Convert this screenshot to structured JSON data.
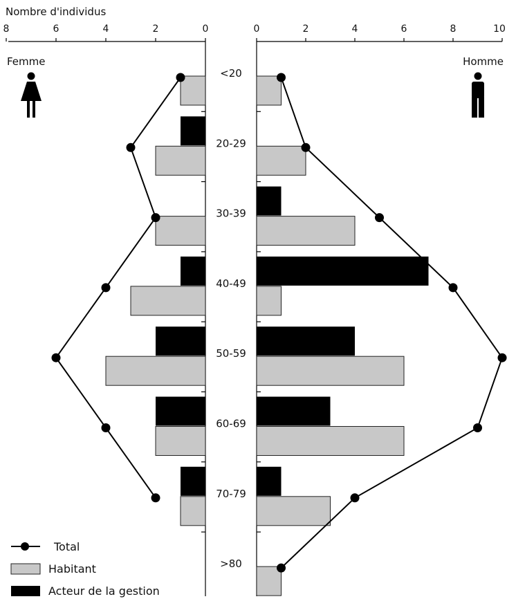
{
  "chart_data": {
    "type": "population-pyramid",
    "axis_title": "Nombre d'individus",
    "left_label": "Femme",
    "right_label": "Homme",
    "left_icon": "woman-icon",
    "right_icon": "man-icon",
    "categories": [
      "<20",
      "20-29",
      "30-39",
      "40-49",
      "50-59",
      "60-69",
      "70-79",
      ">80"
    ],
    "left_axis": {
      "ticks": [
        8,
        6,
        4,
        2,
        0
      ],
      "range": [
        0,
        8
      ]
    },
    "right_axis": {
      "ticks": [
        0,
        2,
        4,
        6,
        8,
        10
      ],
      "range": [
        0,
        10
      ]
    },
    "femme": {
      "habitant": [
        1,
        2,
        2,
        3,
        4,
        2,
        1,
        0
      ],
      "acteur": [
        0,
        1,
        0,
        1,
        2,
        2,
        1,
        0
      ],
      "total": [
        1,
        3,
        2,
        4,
        6,
        4,
        2,
        null
      ]
    },
    "homme": {
      "habitant": [
        1,
        2,
        4,
        1,
        6,
        6,
        3,
        1
      ],
      "acteur": [
        0,
        0,
        1,
        7,
        4,
        3,
        1,
        0
      ],
      "total": [
        1,
        2,
        5,
        8,
        10,
        9,
        4,
        1
      ]
    },
    "legend": {
      "total": "Total",
      "habitant": "Habitant",
      "acteur": "Acteur de la gestion"
    },
    "colors": {
      "habitant": "#c8c8c8",
      "acteur": "#000000",
      "line": "#000000"
    }
  }
}
